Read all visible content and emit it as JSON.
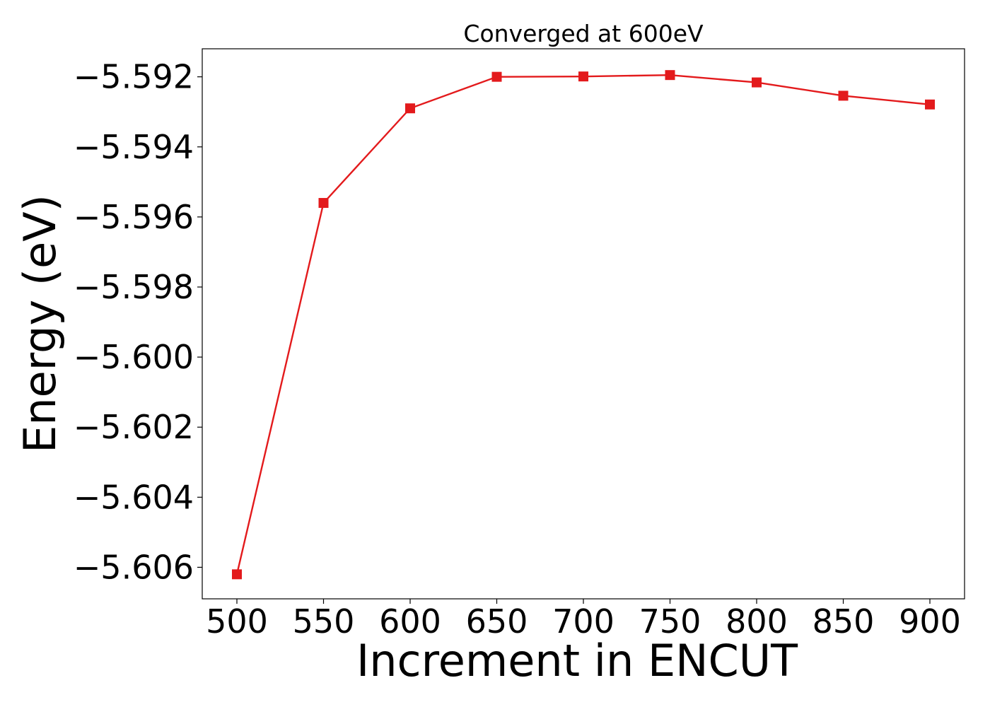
{
  "chart_data": {
    "type": "line",
    "title": "Converged at 600eV",
    "xlabel": "Increment in ENCUT",
    "ylabel": "Energy (eV)",
    "x": [
      500,
      550,
      600,
      650,
      700,
      750,
      800,
      850,
      900
    ],
    "series": [
      {
        "values": [
          -5.6062,
          -5.5956,
          -5.5929,
          -5.592,
          -5.59199,
          -5.59195,
          -5.59216,
          -5.59254,
          -5.59279
        ],
        "color": "#e31a1c",
        "marker": "square"
      }
    ],
    "xticks": [
      500,
      550,
      600,
      650,
      700,
      750,
      800,
      850,
      900
    ],
    "xtick_labels": [
      "500",
      "550",
      "600",
      "650",
      "700",
      "750",
      "800",
      "850",
      "900"
    ],
    "yticks": [
      -5.606,
      -5.604,
      -5.602,
      -5.6,
      -5.598,
      -5.596,
      -5.594,
      -5.592
    ],
    "ytick_labels": [
      "−5.606",
      "−5.604",
      "−5.602",
      "−5.600",
      "−5.598",
      "−5.596",
      "−5.594",
      "−5.592"
    ],
    "xlim": [
      480,
      920
    ],
    "ylim": [
      -5.6069,
      -5.5912
    ],
    "grid": false,
    "legend": "none"
  }
}
